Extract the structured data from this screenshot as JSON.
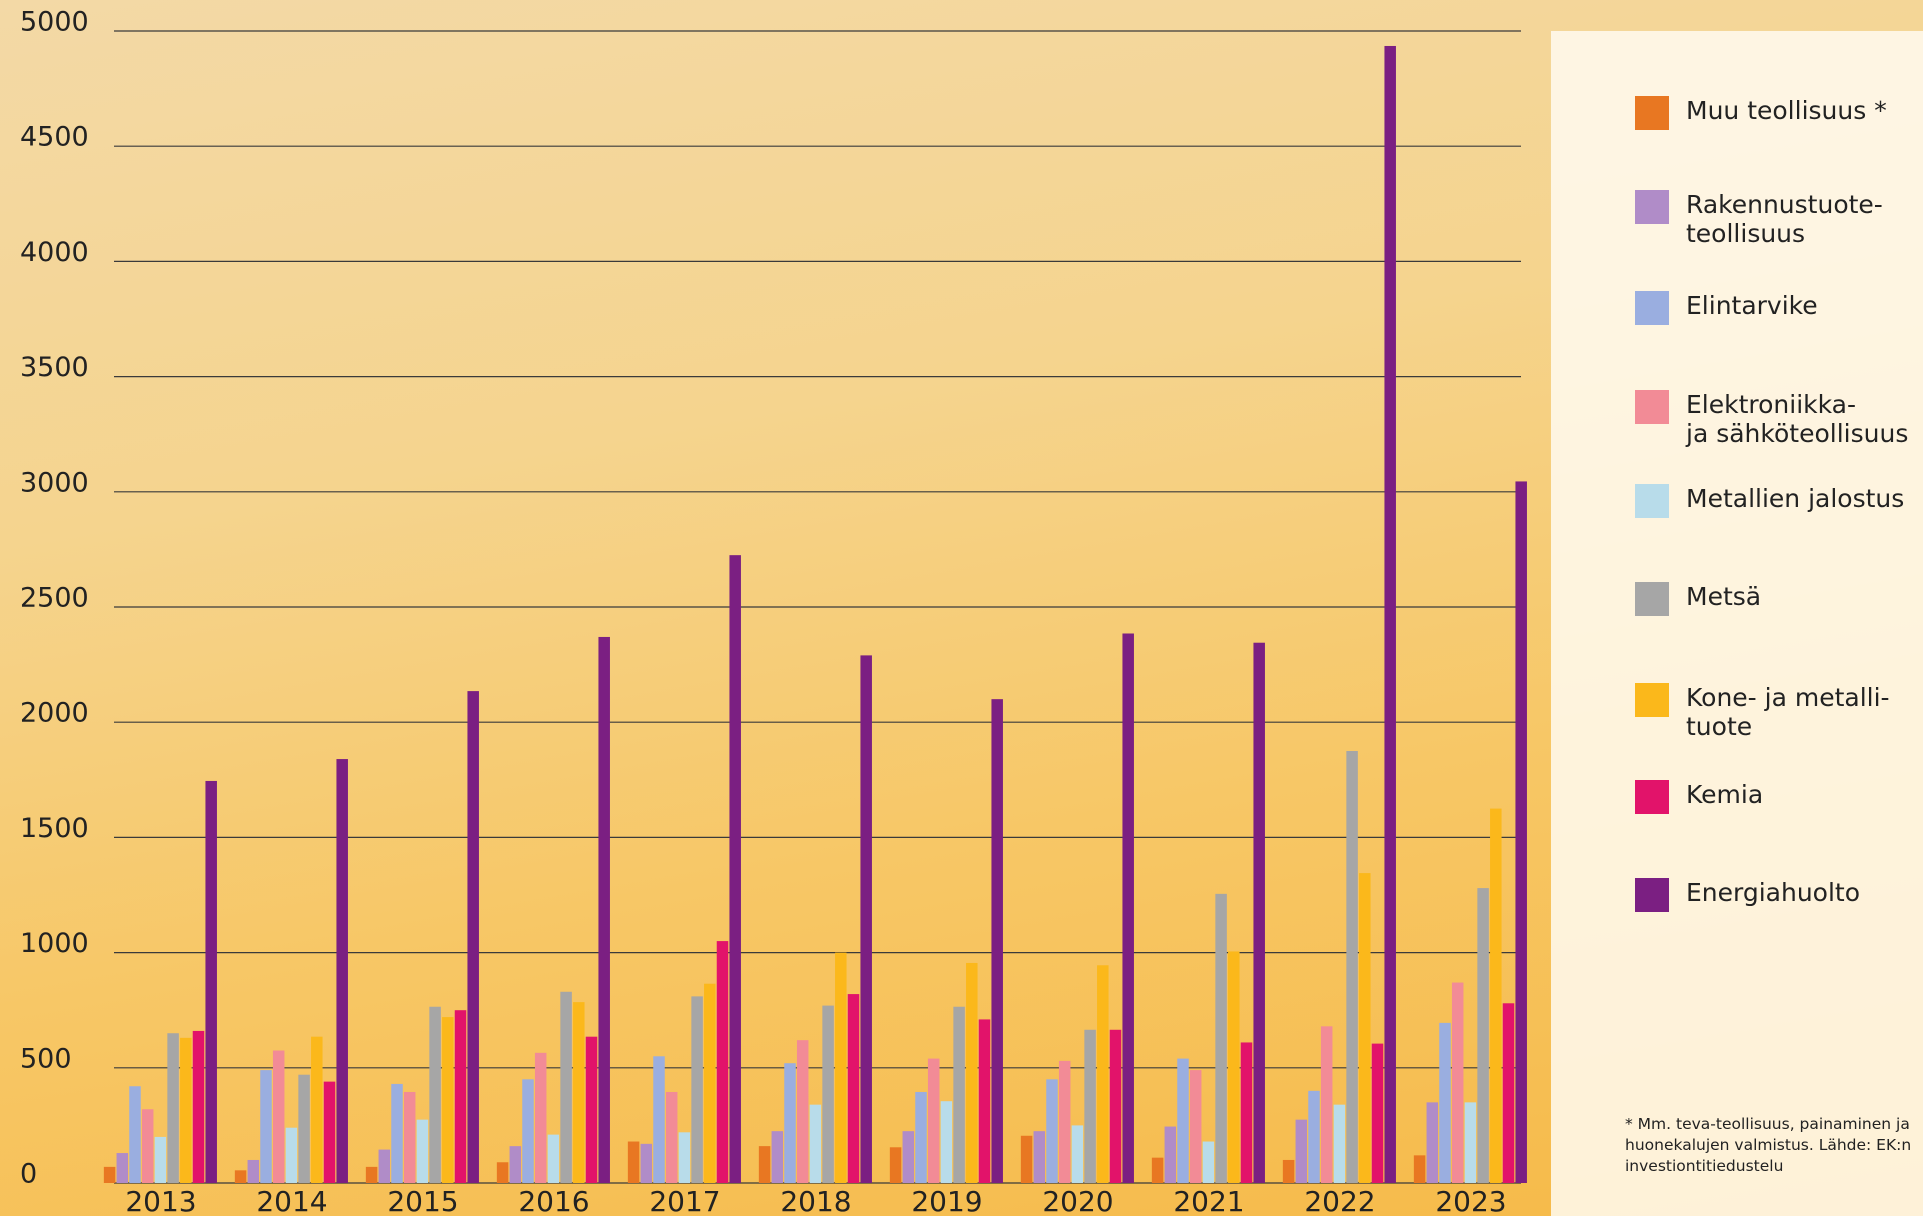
{
  "chart_data": {
    "type": "bar",
    "note": "* Mm. teva-teollisuus, painaminen ja huonekalujen valmistus. Lähde: EK:n investiontitiedustelu",
    "categories": [
      "2013",
      "2014",
      "2015",
      "2016",
      "2017",
      "2018",
      "2019",
      "2020",
      "2021",
      "2022",
      "2023"
    ],
    "ylim": [
      0,
      5000
    ],
    "yticks": [
      0,
      500,
      1000,
      1500,
      2000,
      2500,
      3000,
      3500,
      4000,
      4500,
      5000
    ],
    "grid": true,
    "series": [
      {
        "name": "Muu teollisuus *",
        "color": "#e87722",
        "values": [
          70,
          55,
          70,
          90,
          180,
          160,
          155,
          205,
          110,
          100,
          120
        ]
      },
      {
        "name": "Rakennustuote-\nteollisuus",
        "color": "#b08cc8",
        "values": [
          130,
          100,
          145,
          160,
          170,
          225,
          225,
          225,
          245,
          275,
          350
        ]
      },
      {
        "name": "Elintarvike",
        "color": "#9aaee0",
        "values": [
          420,
          490,
          430,
          450,
          550,
          520,
          395,
          450,
          540,
          400,
          695
        ]
      },
      {
        "name": "Elektroniikka-\nja sähköteollisuus",
        "color": "#f28b96",
        "values": [
          320,
          575,
          395,
          565,
          395,
          620,
          540,
          530,
          490,
          680,
          870
        ]
      },
      {
        "name": "Metallien jalostus",
        "color": "#b8dcea",
        "values": [
          200,
          240,
          275,
          210,
          220,
          340,
          355,
          250,
          180,
          340,
          350
        ]
      },
      {
        "name": "Metsä",
        "color": "#a6a6a6",
        "values": [
          650,
          470,
          765,
          830,
          810,
          770,
          765,
          665,
          1255,
          1875,
          1280
        ]
      },
      {
        "name": "Kone- ja metalli-\ntuote",
        "color": "#fbb81b",
        "values": [
          630,
          635,
          720,
          785,
          865,
          1000,
          955,
          945,
          1005,
          1345,
          1625
        ]
      },
      {
        "name": "Kemia",
        "color": "#e2136a",
        "values": [
          660,
          440,
          750,
          635,
          1050,
          820,
          710,
          665,
          610,
          605,
          780
        ]
      },
      {
        "name": "Energiahuolto",
        "color": "#7b1f82",
        "values": [
          1745,
          1840,
          2135,
          2370,
          2725,
          2290,
          2100,
          2385,
          2345,
          4935,
          3045
        ]
      }
    ]
  }
}
